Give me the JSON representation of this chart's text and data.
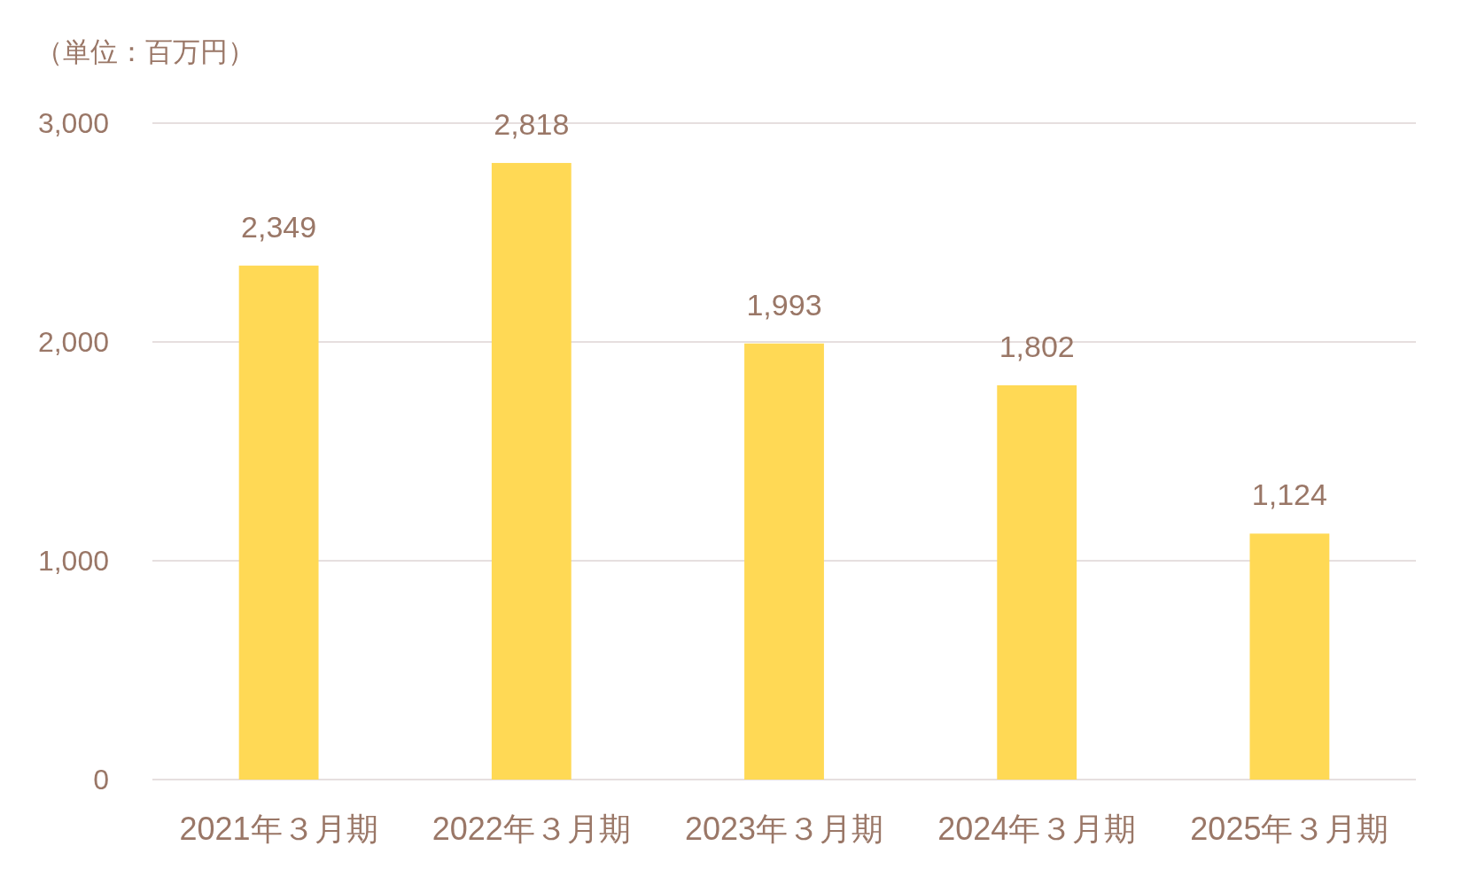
{
  "chart_data": {
    "type": "bar",
    "ylabel": "（単位：百万円）",
    "categories": [
      "2021年３月期",
      "2022年３月期",
      "2023年３月期",
      "2024年３月期",
      "2025年３月期"
    ],
    "series": [
      {
        "color": "#ffd955",
        "values": [
          2349,
          2818,
          1993,
          1802,
          1124
        ],
        "value_labels": [
          "2,349",
          "2,818",
          "1,993",
          "1,802",
          "1,124"
        ]
      }
    ],
    "ylim": [
      0,
      3000
    ],
    "yticks": [
      0,
      {
        "value": 1000,
        "label": "1,000"
      },
      {
        "value": 2000,
        "label": "2,000"
      },
      {
        "value": 3000,
        "label": "3,000"
      }
    ],
    "grid": "y"
  }
}
